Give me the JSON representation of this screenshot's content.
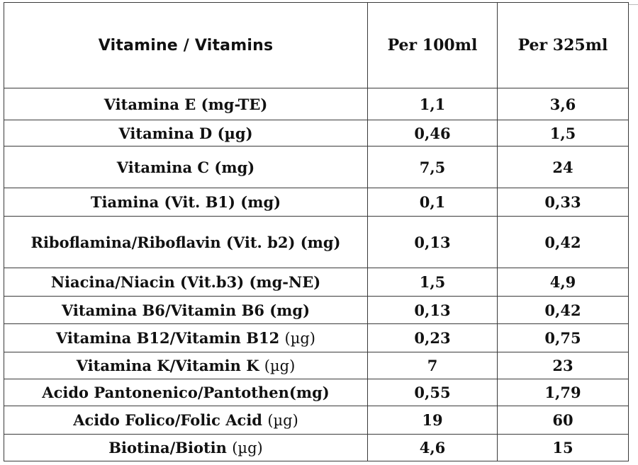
{
  "table": {
    "headers": {
      "name": "Vitamine / Vitamins",
      "per100": "Per 100ml",
      "per325": "Per 325ml"
    },
    "rows": [
      {
        "name": "Vitamina E (mg-TE)",
        "unit": "",
        "per100": "1,1",
        "per325": "3,6"
      },
      {
        "name": "Vitamina D (µg)",
        "unit": "",
        "per100": "0,46",
        "per325": "1,5"
      },
      {
        "name": "Vitamina C (mg)",
        "unit": "",
        "per100": "7,5",
        "per325": "24"
      },
      {
        "name": "Tiamina (Vit. B1) (mg)",
        "unit": "",
        "per100": "0,1",
        "per325": "0,33"
      },
      {
        "name": "Riboflamina/Riboflavin (Vit. b2) (mg)",
        "unit": "",
        "per100": "0,13",
        "per325": "0,42"
      },
      {
        "name": "Niacina/Niacin (Vit.b3) (mg-NE)",
        "unit": "",
        "per100": "1,5",
        "per325": "4,9"
      },
      {
        "name": "Vitamina B6/Vitamin B6 (mg)",
        "unit": "",
        "per100": "0,13",
        "per325": "0,42"
      },
      {
        "name": "Vitamina B12/Vitamin B12",
        "unit": "(µg)",
        "per100": "0,23",
        "per325": "0,75"
      },
      {
        "name": "Vitamina K/Vitamin K",
        "unit": "(µg)",
        "per100": "7",
        "per325": "23"
      },
      {
        "name": "Acido Pantonenico/Pantothen(mg)",
        "unit": "",
        "per100": "0,55",
        "per325": "1,79"
      },
      {
        "name": "Acido Folico/Folic Acid",
        "unit": "(µg)",
        "per100": "19",
        "per325": "60"
      },
      {
        "name": "Biotina/Biotin",
        "unit": "(µg)",
        "per100": "4,6",
        "per325": "15"
      }
    ]
  }
}
